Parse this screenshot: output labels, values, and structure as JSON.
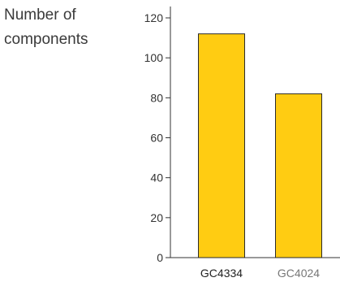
{
  "chart_data": {
    "type": "bar",
    "title": "",
    "xlabel": "",
    "ylabel_lines": [
      "Number of",
      "components"
    ],
    "categories": [
      "GC4334",
      "GC4024"
    ],
    "values": [
      112,
      82
    ],
    "ylim": [
      0,
      120
    ],
    "yticks": [
      0,
      20,
      40,
      60,
      80,
      100,
      120
    ],
    "grid": false,
    "legend": "none",
    "colors": {
      "bar_fill": "#FFCC12",
      "bar_stroke": "#2a2a2a",
      "axis": "#333333",
      "category_label_primary": "#222222",
      "category_label_secondary": "#777777"
    }
  }
}
